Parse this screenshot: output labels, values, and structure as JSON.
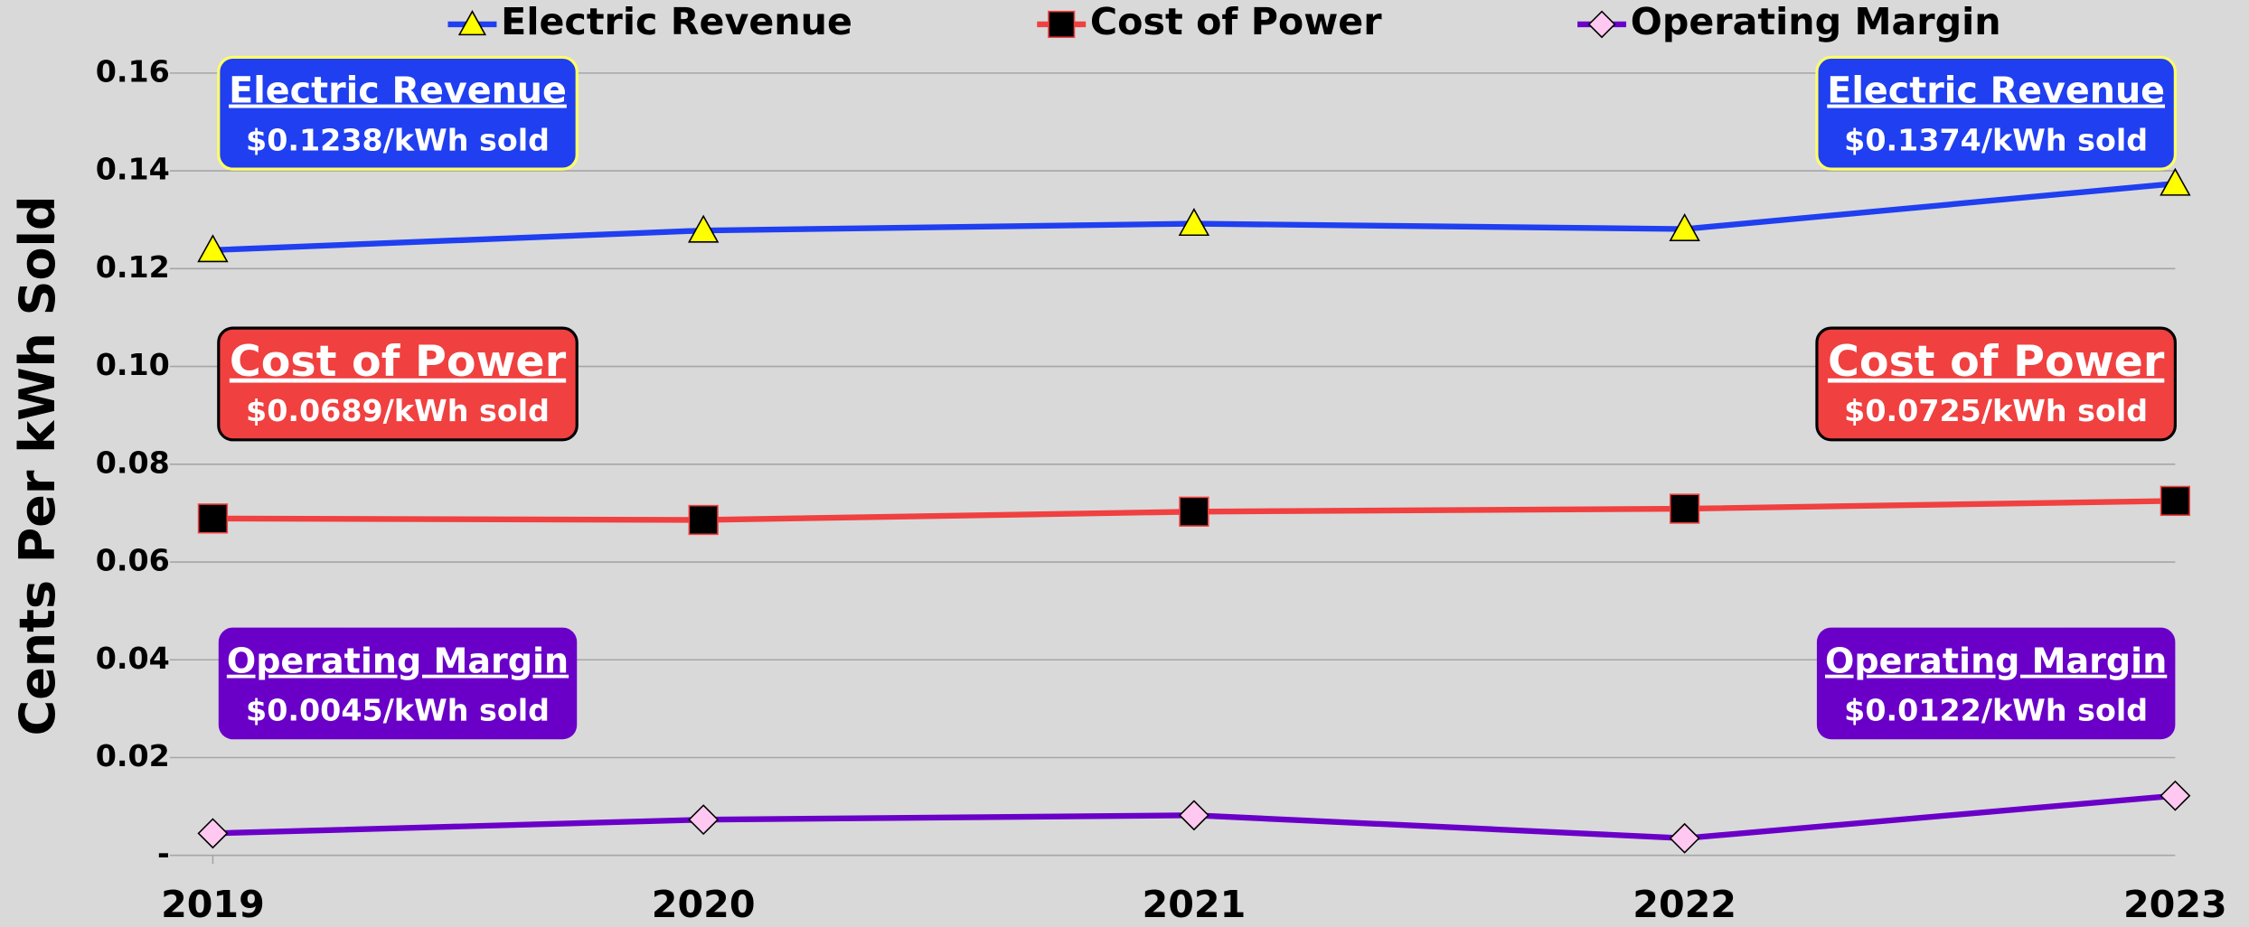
{
  "chart_data": {
    "type": "line",
    "y_axis_label": "Cents Per kWh Sold",
    "categories": [
      "2019",
      "2020",
      "2021",
      "2022",
      "2023"
    ],
    "ylim": [
      0,
      0.16
    ],
    "yticks": [
      {
        "value": 0,
        "label": "-"
      },
      0.02,
      0.04,
      0.06,
      0.08,
      {
        "value": 0.1,
        "label": "0.10"
      },
      0.12,
      0.14,
      0.16
    ],
    "grid": true,
    "legend": "top",
    "series": [
      {
        "name": "Electric Revenue",
        "color": "#1f3ff0",
        "marker": "triangle",
        "marker_color": "#ffff00",
        "values": [
          0.1238,
          0.1278,
          0.1292,
          0.1281,
          0.1374
        ]
      },
      {
        "name": "Cost of Power",
        "color": "#f04040",
        "marker": "square",
        "marker_color": "#000000",
        "values": [
          0.0689,
          0.0686,
          0.0703,
          0.0709,
          0.0725
        ]
      },
      {
        "name": "Operating Margin",
        "color": "#6a00c8",
        "marker": "diamond",
        "marker_color": "#ffc8f0",
        "values": [
          0.0045,
          0.0073,
          0.0082,
          0.0035,
          0.0122
        ]
      }
    ],
    "annotations": [
      {
        "title": "Electric Revenue",
        "text": "$0.1238/kWh sold"
      },
      {
        "title": "Electric Revenue",
        "text": "$0.1374/kWh sold"
      },
      {
        "title": "Cost of Power",
        "text": "$0.0689/kWh sold"
      },
      {
        "title": "Cost of Power",
        "text": "$0.0725/kWh sold"
      },
      {
        "title": "Operating Margin",
        "text": "$0.0045/kWh sold"
      },
      {
        "title": "Operating Margin",
        "text": "$0.0122/kWh sold"
      }
    ]
  }
}
